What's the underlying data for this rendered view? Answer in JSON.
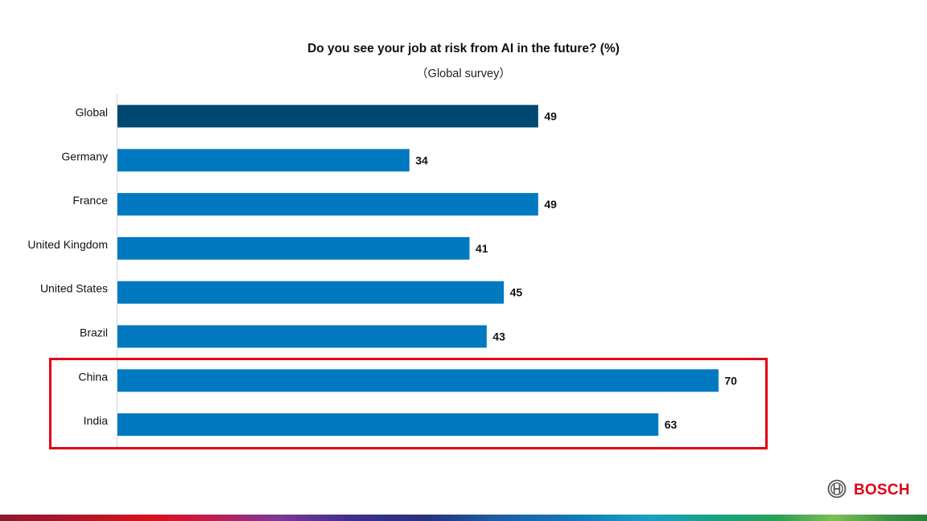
{
  "header": {
    "title": "Do you see your job at risk from AI in the future? (%)",
    "subtitle": "（Global survey）"
  },
  "brand": {
    "logo_text": "BOSCH",
    "logo_icon": "bosch-armature-icon",
    "color": "#e20015"
  },
  "colors": {
    "bar_primary": "#0079c1",
    "bar_global": "#004872",
    "highlight_border": "#e20015"
  },
  "chart_data": {
    "type": "bar",
    "orientation": "horizontal",
    "title": "Do you see your job at risk from AI in the future? (%)",
    "subtitle": "（Global survey）",
    "categories": [
      "Global",
      "Germany",
      "France",
      "United Kingdom",
      "United States",
      "Brazil",
      "China",
      "India"
    ],
    "values": [
      49,
      34,
      49,
      41,
      45,
      43,
      70,
      63
    ],
    "xlim": [
      0,
      70
    ],
    "grid": false,
    "highlighted_categories": [
      "China",
      "India"
    ]
  }
}
